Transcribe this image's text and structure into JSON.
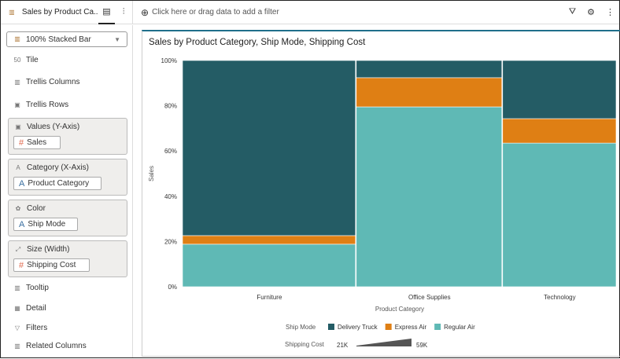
{
  "header": {
    "tab_title": "Sales by Product Ca...",
    "filter_placeholder": "Click here or drag data to add a filter"
  },
  "left_panel": {
    "chart_type": "100% Stacked Bar",
    "items": [
      {
        "label": "Tile",
        "icon": "tile-icon"
      },
      {
        "label": "Trellis Columns",
        "icon": "trellis-columns-icon"
      },
      {
        "label": "Trellis Rows",
        "icon": "trellis-rows-icon"
      }
    ],
    "drop_zones": [
      {
        "label": "Values (Y-Axis)",
        "value": "Sales",
        "value_type": "number"
      },
      {
        "label": "Category (X-Axis)",
        "value": "Product Category",
        "value_type": "text"
      },
      {
        "label": "Color",
        "value": "Ship Mode",
        "value_type": "text"
      },
      {
        "label": "Size (Width)",
        "value": "Shipping Cost",
        "value_type": "number"
      }
    ],
    "bottom_items": [
      {
        "label": "Tooltip"
      },
      {
        "label": "Detail"
      },
      {
        "label": "Filters"
      },
      {
        "label": "Related Columns"
      }
    ]
  },
  "chart_data": {
    "type": "bar",
    "subtype": "100% stacked, variable width",
    "title": "Sales by Product Category, Ship Mode, Shipping Cost",
    "xlabel": "Product Category",
    "ylabel": "Sales",
    "categories": [
      "Furniture",
      "Office Supplies",
      "Technology"
    ],
    "yticks": [
      "0%",
      "20%",
      "40%",
      "60%",
      "80%",
      "100%"
    ],
    "ylim": [
      0,
      100
    ],
    "width_share_pct": [
      40,
      33.7,
      26.3
    ],
    "series": [
      {
        "name": "Regular Air",
        "color": "#5fb9b5",
        "values": [
          18.8,
          79.5,
          63.5
        ]
      },
      {
        "name": "Express Air",
        "color": "#df7f14",
        "values": [
          3.8,
          12.9,
          10.8
        ]
      },
      {
        "name": "Delivery Truck",
        "color": "#245c65",
        "values": [
          77.4,
          7.6,
          25.7
        ]
      }
    ],
    "legend": {
      "title": "Ship Mode",
      "order": [
        "Delivery Truck",
        "Express Air",
        "Regular Air"
      ],
      "placement": "bottom"
    },
    "size_legend": {
      "title": "Shipping Cost",
      "min": "21K",
      "max": "59K"
    }
  }
}
